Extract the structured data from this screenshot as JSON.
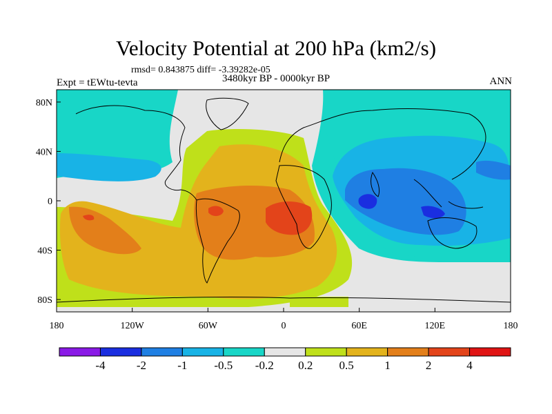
{
  "title": "Velocity Potential at 200 hPa (km2/s)",
  "stats": "rmsd= 0.843875 diff= -3.39282e-05",
  "experiment": "Expt = tEWtu-tevta",
  "period": "3480kyr BP - 0000kyr BP",
  "season": "ANN",
  "x_ticks": [
    "180",
    "120W",
    "60W",
    "0",
    "60E",
    "120E",
    "180"
  ],
  "y_ticks": [
    "80N",
    "40N",
    "0",
    "40S",
    "80S"
  ],
  "colorbar": {
    "colors": [
      "#8a1ae6",
      "#1a2ee0",
      "#1f7fe3",
      "#18b3e6",
      "#18d6c7",
      "#e6e6e6",
      "#bfe01a",
      "#e3b31c",
      "#e37f1a",
      "#e3441a",
      "#e01414"
    ],
    "labels": [
      "-4",
      "-2",
      "-1",
      "-0.5",
      "-0.2",
      "0.2",
      "0.5",
      "1",
      "2",
      "4"
    ]
  },
  "field_colors": {
    "n05": "#18d6c7",
    "n1": "#18b3e6",
    "n2": "#1f7fe3",
    "n4": "#1a2ee0",
    "near_zero": "#e6e6e6",
    "p02": "#bfe01a",
    "p05": "#e3b31c",
    "p1": "#e37f1a",
    "p2": "#e3441a"
  }
}
